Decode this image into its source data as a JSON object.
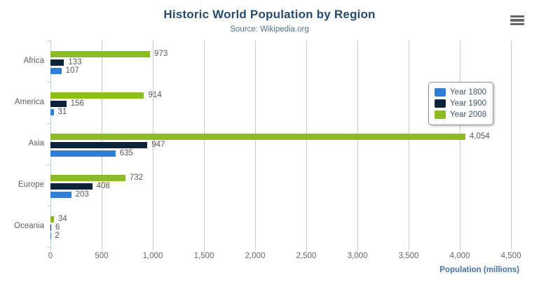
{
  "header": {
    "title": "Historic World Population by Region",
    "subtitle": "Source: Wikipedia.org"
  },
  "export_menu": {
    "icon": "hamburger-menu-icon"
  },
  "chart_data": {
    "type": "bar",
    "orientation": "horizontal",
    "title": "Historic World Population by Region",
    "subtitle": "Source: Wikipedia.org",
    "categories": [
      "Africa",
      "America",
      "Asia",
      "Europe",
      "Oceania"
    ],
    "series": [
      {
        "name": "Year 1800",
        "color": "#2f7ed8",
        "values": [
          107,
          31,
          635,
          203,
          2
        ]
      },
      {
        "name": "Year 1900",
        "color": "#0d233a",
        "values": [
          133,
          156,
          947,
          408,
          6
        ]
      },
      {
        "name": "Year 2008",
        "color": "#8bbc21",
        "values": [
          973,
          914,
          4054,
          732,
          34
        ]
      }
    ],
    "bar_order_top_to_bottom": [
      "Year 2008",
      "Year 1900",
      "Year 1800"
    ],
    "data_labels": true,
    "xlabel": "Population (millions)",
    "xlim": [
      0,
      4500
    ],
    "xticks": [
      0,
      500,
      1000,
      1500,
      2000,
      2500,
      3000,
      3500,
      4000,
      4500
    ],
    "grid": true,
    "legend_position": "right",
    "colors": {
      "title": "#274b6d",
      "subtitle": "#50708f",
      "axis_line": "#C0D0E0",
      "gridline": "#C8C8C8",
      "tick_label": "#666666",
      "data_label": "#5a5a5a",
      "xaxis_title": "#4572A7",
      "legend_text": "#3E576F"
    }
  }
}
